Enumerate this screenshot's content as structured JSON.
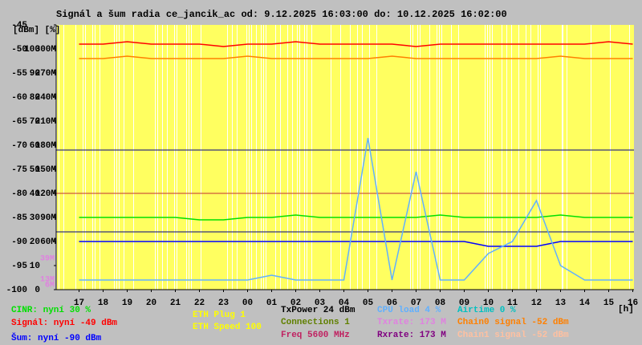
{
  "chart_data": {
    "type": "line",
    "title": "Signál a šum radia ce_jancik_ac od: 9.12.2025 16:03:00 do: 10.12.2025 16:02:00",
    "y_axis_label": "[dBm] [%]",
    "x_axis_label": "[h]",
    "categories": [
      "17",
      "18",
      "19",
      "20",
      "21",
      "22",
      "23",
      "00",
      "01",
      "02",
      "03",
      "04",
      "05",
      "06",
      "07",
      "08",
      "09",
      "10",
      "11",
      "12",
      "13",
      "14",
      "15",
      "16"
    ],
    "ylim": [
      -100,
      -45
    ],
    "yticks": [
      -100,
      -95,
      -90,
      -85,
      -80,
      -75,
      -70,
      -65,
      -60,
      -55,
      -50,
      -45
    ],
    "y2lim": [
      0,
      110
    ],
    "y2ticks": [
      0,
      10,
      20,
      30,
      40,
      50,
      60,
      70,
      80,
      90,
      100
    ],
    "y3lim": [
      0,
      330
    ],
    "y3ticks": [
      {
        "value": 60,
        "label": "60M"
      },
      {
        "value": 90,
        "label": "90M"
      },
      {
        "value": 120,
        "label": "120M"
      },
      {
        "value": 150,
        "label": "150M"
      },
      {
        "value": 180,
        "label": "180M"
      },
      {
        "value": 210,
        "label": "210M"
      },
      {
        "value": 240,
        "label": "240M"
      },
      {
        "value": 270,
        "label": "270M"
      },
      {
        "value": 300,
        "label": "300M"
      }
    ],
    "rate_marks": [
      {
        "value": 39,
        "label": "39M",
        "color": "#e080e0"
      },
      {
        "value": 13,
        "label": "13M",
        "color": "#e080e0"
      },
      {
        "value": 6,
        "label": "6M",
        "color": "#e080e0"
      }
    ],
    "reference_lines": [
      {
        "value": -71,
        "color": "#000080"
      },
      {
        "value": -80,
        "color": "#c03030"
      },
      {
        "value": -88,
        "color": "#000080"
      }
    ],
    "series": [
      {
        "color": "#ff0000",
        "values": [
          -49,
          -49,
          -48.5,
          -49,
          -49,
          -49,
          -49.5,
          -49,
          -49,
          -48.5,
          -49,
          -49,
          -49,
          -49,
          -49.5,
          -49,
          -49,
          -49,
          -49,
          -49,
          -49,
          -49,
          -48.5,
          -49
        ]
      },
      {
        "color": "#ff8000",
        "values": [
          -52,
          -52,
          -51.5,
          -52,
          -52,
          -52,
          -52,
          -51.5,
          -52,
          -52,
          -52,
          -52,
          -52,
          -51.5,
          -52,
          -52,
          -52,
          -52,
          -52,
          -52,
          -51.5,
          -52,
          -52,
          -52
        ]
      },
      {
        "color": "#0000ff",
        "values": [
          -90,
          -90,
          -90,
          -90,
          -90,
          -90,
          -90,
          -90,
          -90,
          -90,
          -90,
          -90,
          -90,
          -90,
          -90,
          -90,
          -90,
          -91,
          -91,
          -91,
          -90,
          -90,
          -90,
          -90
        ]
      },
      {
        "color": "#00e000",
        "axis": "y2",
        "values": [
          30,
          30,
          30,
          30,
          30,
          29,
          29,
          30,
          30,
          31,
          30,
          30,
          30,
          30,
          30,
          31,
          30,
          30,
          30,
          30,
          31,
          30,
          30,
          30
        ]
      },
      {
        "color": "#60b0ff",
        "axis": "y2",
        "values": [
          4,
          4,
          4,
          4,
          4,
          4,
          4,
          4,
          6,
          4,
          4,
          4,
          63,
          4,
          49,
          4,
          4,
          15,
          20,
          37,
          10,
          4,
          4,
          4
        ]
      }
    ],
    "legend": [
      {
        "text": "CINR: nyní 30 %",
        "color": "#00e000"
      },
      {
        "text": "Signál: nyní -49 dBm",
        "color": "#ff0000"
      },
      {
        "text": "Šum: nyní -90 dBm",
        "color": "#0000ff"
      },
      {
        "text": "ETH Plug 1",
        "color": "#ffff00"
      },
      {
        "text": "ETH Speed 100",
        "color": "#ffff00"
      },
      {
        "text": "TxPower 24 dBm",
        "color": "#000000"
      },
      {
        "text": "Connections 1",
        "color": "#608000"
      },
      {
        "text": "Freq 5600 MHz",
        "color": "#c02060"
      },
      {
        "text": "CPU load 4 %",
        "color": "#60b0ff"
      },
      {
        "text": "Txrate: 173 M",
        "color": "#e080e0"
      },
      {
        "text": "Rxrate: 173 M",
        "color": "#800080"
      },
      {
        "text": "Airtime 0 %",
        "color": "#00c0c0"
      },
      {
        "text": "Chain0 signal -52 dBm",
        "color": "#ff8000"
      },
      {
        "text": "Chain1 signal -52 dBm",
        "color": "#ffc0a0"
      }
    ]
  }
}
